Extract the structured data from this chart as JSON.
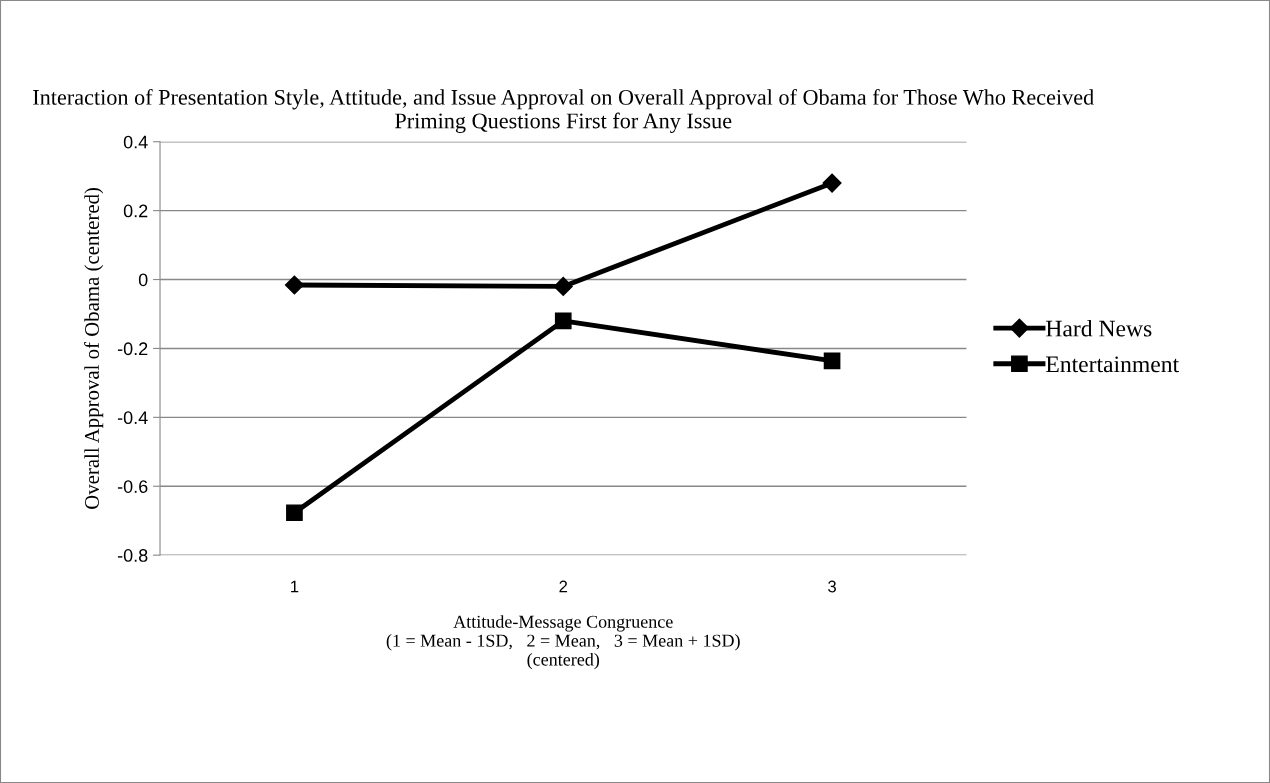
{
  "chart_data": {
    "type": "line",
    "title": "Interaction of Presentation Style, Attitude, and Issue Approval on Overall Approval of Obama for Those Who Received Priming Questions First for Any Issue",
    "xlabel": "Attitude-Message Congruence\n(1 = Mean - 1SD,   2 = Mean,   3 = Mean + 1SD)\n(centered)",
    "ylabel": "Overall Approval of Obama (centered)",
    "categories": [
      "1",
      "2",
      "3"
    ],
    "series": [
      {
        "name": "Hard News",
        "color": "#000000",
        "marker": "diamond",
        "values": [
          -0.016,
          -0.02,
          0.28
        ]
      },
      {
        "name": "Entertainment",
        "color": "#000000",
        "marker": "square",
        "values": [
          -0.677,
          -0.12,
          -0.236
        ]
      }
    ],
    "ylim": [
      -0.8,
      0.4
    ],
    "yticks": [
      {
        "value": -0.8,
        "label": "-0.8"
      },
      {
        "value": -0.6,
        "label": "-0.6"
      },
      {
        "value": -0.4,
        "label": "-0.4"
      },
      {
        "value": -0.2,
        "label": "-0.2"
      },
      0,
      0.2,
      0.4
    ],
    "grid": "y",
    "legend": "right",
    "line_style": "solid"
  }
}
